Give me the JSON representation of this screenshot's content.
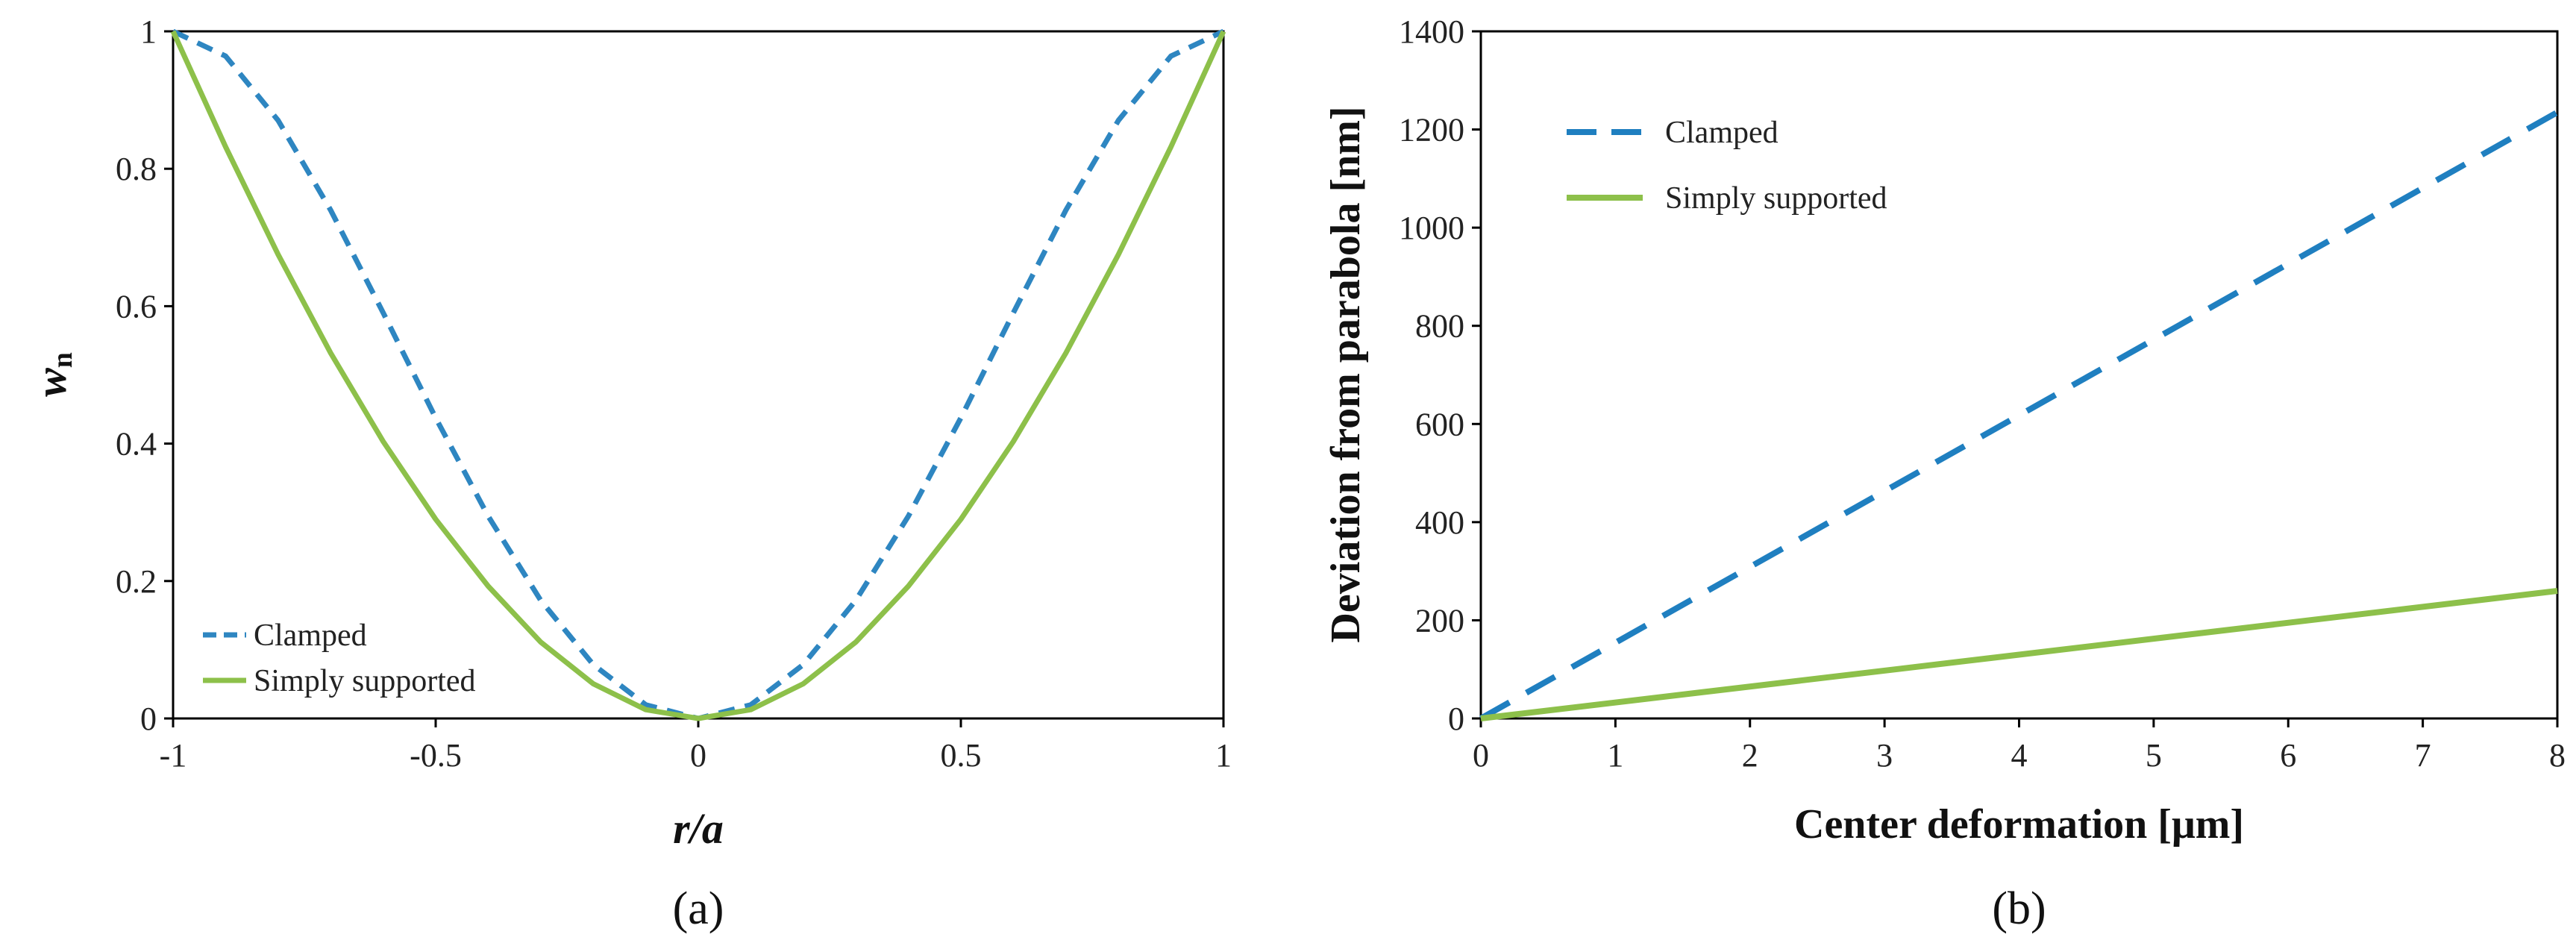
{
  "chart_data": [
    {
      "type": "line",
      "panel_label": "(a)",
      "xlabel": "r/a",
      "ylabel_main": "w",
      "ylabel_sub": "n",
      "xlim": [
        -1,
        1
      ],
      "ylim": [
        0,
        1
      ],
      "x_ticks": [
        -1,
        -0.5,
        0,
        0.5,
        1
      ],
      "x_tick_labels": [
        "-1",
        "-0.5",
        "0",
        "0.5",
        "1"
      ],
      "y_ticks": [
        0,
        0.2,
        0.4,
        0.6,
        0.8,
        1
      ],
      "y_tick_labels": [
        "0",
        "0.2",
        "0.4",
        "0.6",
        "0.8",
        "1"
      ],
      "legend_position": "bottom-left",
      "series": [
        {
          "name": "Clamped",
          "style": "dashed",
          "color": "#2E86C1",
          "x": [
            -1,
            -0.9,
            -0.8,
            -0.7,
            -0.6,
            -0.5,
            -0.4,
            -0.3,
            -0.2,
            -0.1,
            0,
            0.1,
            0.2,
            0.3,
            0.4,
            0.5,
            0.6,
            0.7,
            0.8,
            0.9,
            1
          ],
          "y": [
            1,
            0.9639,
            0.8704,
            0.7399,
            0.5904,
            0.4375,
            0.2944,
            0.1719,
            0.0784,
            0.0199,
            0,
            0.0199,
            0.0784,
            0.1719,
            0.2944,
            0.4375,
            0.5904,
            0.7399,
            0.8704,
            0.9639,
            1
          ]
        },
        {
          "name": "Simply supported",
          "style": "solid",
          "color": "#8DC04A",
          "x": [
            -1,
            -0.9,
            -0.8,
            -0.7,
            -0.6,
            -0.5,
            -0.4,
            -0.3,
            -0.2,
            -0.1,
            0,
            0.1,
            0.2,
            0.3,
            0.4,
            0.5,
            0.6,
            0.7,
            0.8,
            0.9,
            1
          ],
          "y": [
            1,
            0.8319,
            0.6752,
            0.5319,
            0.4032,
            0.2899,
            0.1925,
            0.1112,
            0.0505,
            0.0128,
            0,
            0.0128,
            0.0505,
            0.1112,
            0.1925,
            0.2899,
            0.4032,
            0.5319,
            0.6752,
            0.8319,
            1
          ]
        }
      ]
    },
    {
      "type": "line",
      "panel_label": "(b)",
      "xlabel": "Center deformation  [μm]",
      "ylabel": "Deviation from parabola  [nm]",
      "xlim": [
        0,
        8
      ],
      "ylim": [
        0,
        1400
      ],
      "x_ticks": [
        0,
        1,
        2,
        3,
        4,
        5,
        6,
        7,
        8
      ],
      "x_tick_labels": [
        "0",
        "1",
        "2",
        "3",
        "4",
        "5",
        "6",
        "7",
        "8"
      ],
      "y_ticks": [
        0,
        200,
        400,
        600,
        800,
        1000,
        1200,
        1400
      ],
      "y_tick_labels": [
        "0",
        "200",
        "400",
        "600",
        "800",
        "1000",
        "1200",
        "1400"
      ],
      "legend_position": "top-left",
      "series": [
        {
          "name": "Clamped",
          "style": "dashed",
          "color": "#1F7FC0",
          "x": [
            0,
            8
          ],
          "y": [
            0,
            1235
          ]
        },
        {
          "name": "Simply supported",
          "style": "solid",
          "color": "#8DC04A",
          "x": [
            0,
            8
          ],
          "y": [
            0,
            260
          ]
        }
      ]
    }
  ]
}
